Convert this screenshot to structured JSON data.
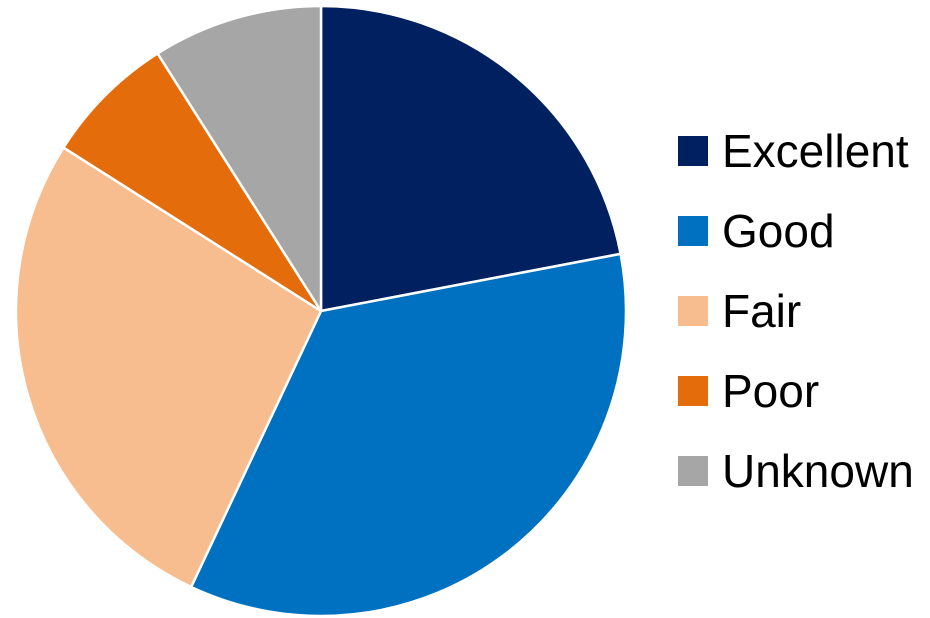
{
  "chart_data": {
    "type": "pie",
    "title": "",
    "legend_position": "right",
    "start_angle": "top",
    "direction": "clockwise",
    "slices": [
      {
        "label": "Excellent",
        "value": 22,
        "color": "#002060"
      },
      {
        "label": "Good",
        "value": 35,
        "color": "#0070C0"
      },
      {
        "label": "Fair",
        "value": 27,
        "color": "#F8BD8E"
      },
      {
        "label": "Poor",
        "value": 7,
        "color": "#E46C0A"
      },
      {
        "label": "Unknown",
        "value": 9,
        "color": "#A6A6A6"
      }
    ]
  }
}
